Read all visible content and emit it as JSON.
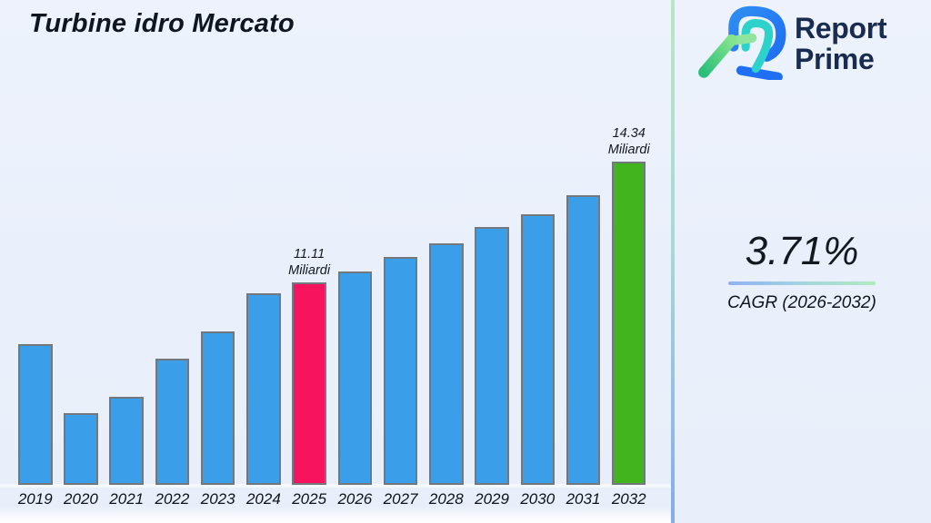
{
  "page": {
    "title": "Turbine idro Mercato"
  },
  "logo": {
    "name": "Report Prime logo",
    "line1": "Report",
    "line2": "Prime"
  },
  "stat_panel": {
    "value": "3.71%",
    "caption": "CAGR (2026-2032)"
  },
  "colors": {
    "background": "#eaf0fb",
    "divider_top": "#b9e7c3",
    "divider_bottom": "#87aaf1",
    "bar_default": "#3a9fe8",
    "bar_highlight_2025": "#f8135f",
    "bar_highlight_2032": "#42b41e",
    "bar_border": "#71797f",
    "logo_navy": "#1a2b50",
    "logo_blue": "#1e6ff3",
    "logo_teal": "#2dd3cb",
    "logo_green": "#3ecf7f"
  },
  "chart_data": {
    "type": "bar",
    "title": "Turbine idro Mercato",
    "unit": "Miliardi",
    "categories": [
      "2019",
      "2020",
      "2021",
      "2022",
      "2023",
      "2024",
      "2025",
      "2026",
      "2027",
      "2028",
      "2029",
      "2030",
      "2031",
      "2032"
    ],
    "values": [
      9.46,
      7.61,
      8.05,
      9.07,
      9.8,
      10.82,
      11.11,
      11.4,
      11.79,
      12.15,
      12.59,
      12.93,
      13.44,
      14.34
    ],
    "labeled_points": [
      {
        "category": "2025",
        "value": 11.11,
        "lines": [
          "11.11",
          "Miliardi"
        ]
      },
      {
        "category": "2032",
        "value": 14.34,
        "lines": [
          "14.34",
          "Miliardi"
        ]
      }
    ],
    "highlight_colors": {
      "2025": "#f8135f",
      "2032": "#42b41e"
    },
    "default_color": "#3a9fe8",
    "xlabel": "",
    "ylabel": "",
    "ylim": [
      5.69,
      15.6
    ],
    "gridlines": false,
    "legend": false,
    "values_note": "only 2025 and 2032 carry data labels; other values estimated from bar heights"
  }
}
